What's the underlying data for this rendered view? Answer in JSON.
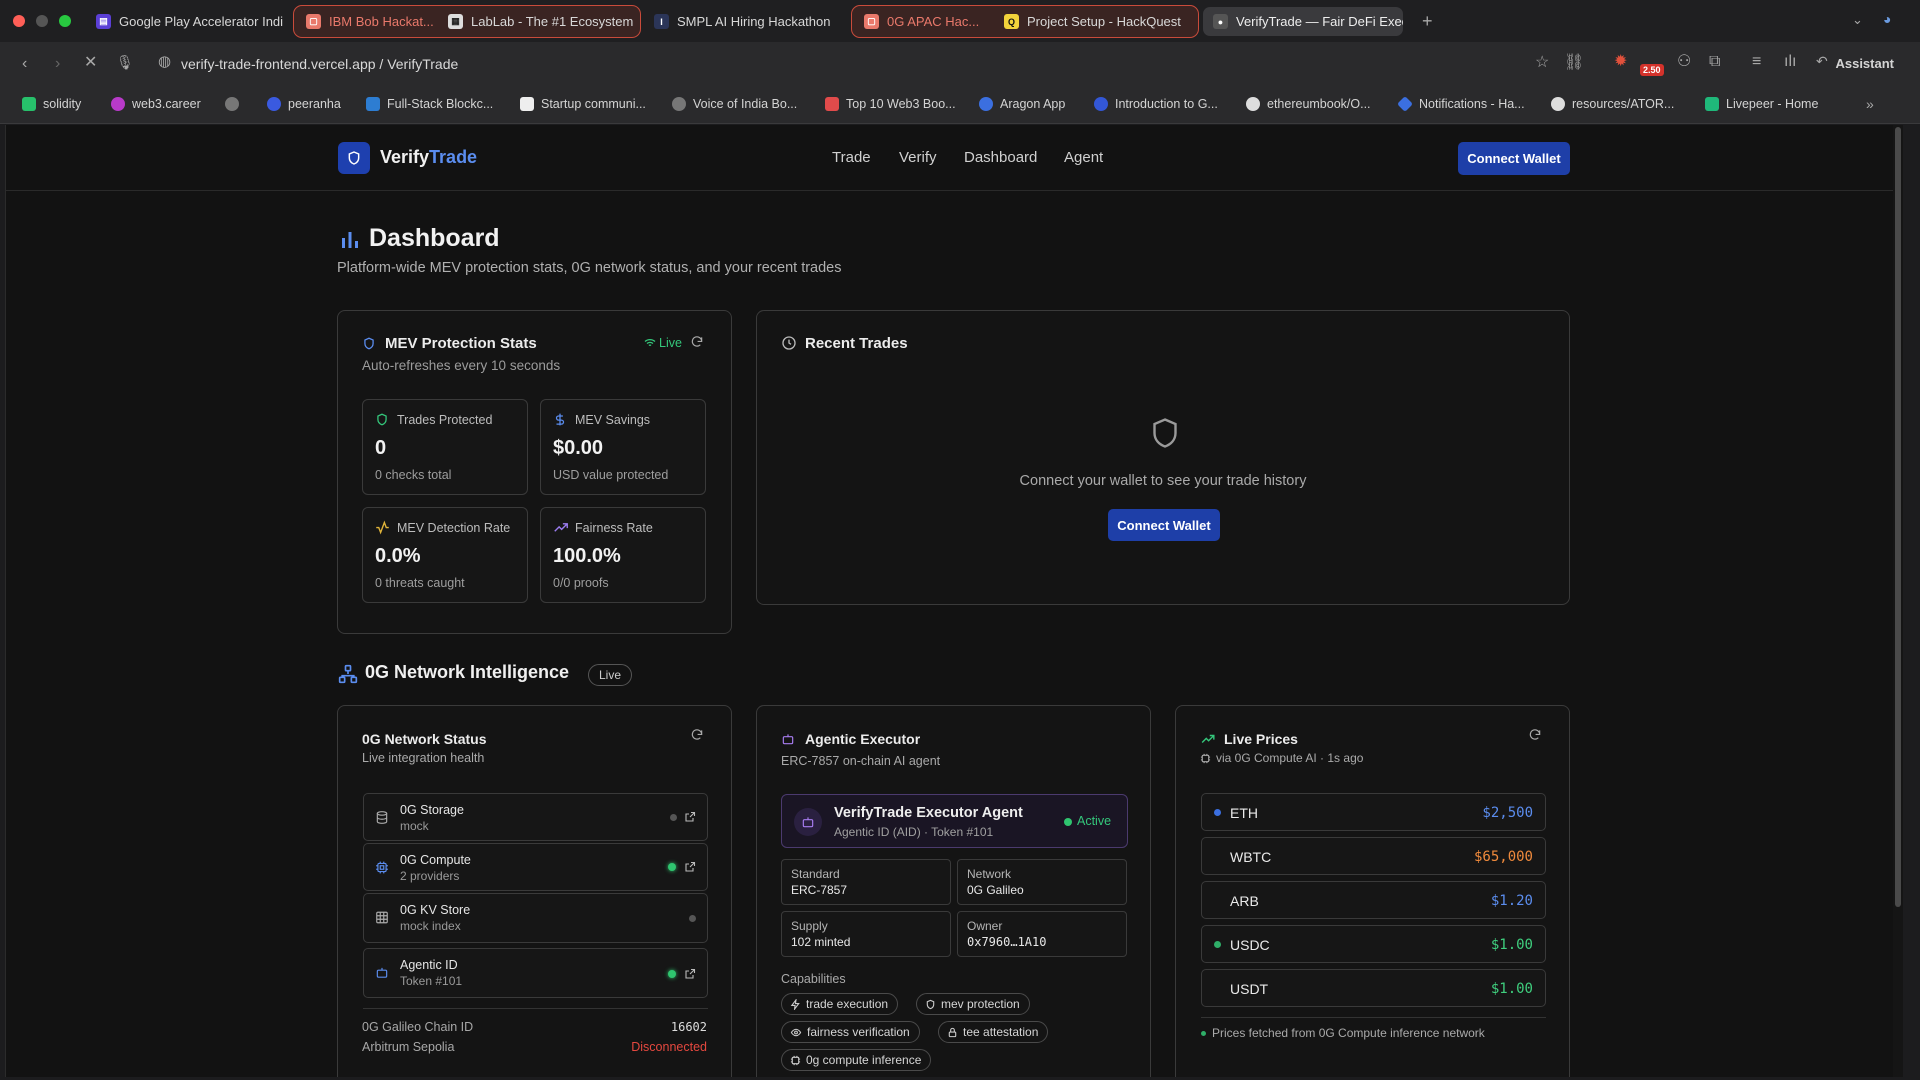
{
  "browser": {
    "tabs": [
      {
        "title": "Google Play Accelerator Indi",
        "icon": "google-play-icon"
      },
      {
        "title": "IBM Bob Hackat...",
        "icon": "folder-icon",
        "group": "red"
      },
      {
        "title": "LabLab - The #1 Ecosystem",
        "icon": "lablab-icon",
        "group": "red"
      },
      {
        "title": "SMPL AI Hiring Hackathon",
        "icon": "smpl-icon"
      },
      {
        "title": "0G APAC Hac...",
        "icon": "folder-icon",
        "group": "red"
      },
      {
        "title": "Project Setup - HackQuest",
        "icon": "hackquest-icon",
        "group": "red"
      },
      {
        "title": "VerifyTrade — Fair DeFi Exec",
        "icon": "verifytrade-icon",
        "active": true
      }
    ],
    "url": "verify-trade-frontend.vercel.app / VerifyTrade",
    "badge": "2.50",
    "assistant": "Assistant",
    "bookmarks": [
      "solidity",
      "web3.career",
      "",
      "peeranha",
      "Full-Stack Blockc...",
      "Startup communi...",
      "Voice of India Bo...",
      "Top 10 Web3 Boo...",
      "Aragon App",
      "Introduction to G...",
      "ethereumbook/O...",
      "Notifications - Ha...",
      "resources/ATOR...",
      "Livepeer - Home"
    ]
  },
  "nav": {
    "brand_prefix": "Verify",
    "brand_suffix": "Trade",
    "links": [
      "Trade",
      "Verify",
      "Dashboard",
      "Agent"
    ],
    "connect": "Connect Wallet"
  },
  "header": {
    "title": "Dashboard",
    "subtitle": "Platform-wide MEV protection stats, 0G network status, and your recent trades"
  },
  "mev": {
    "title": "MEV Protection Stats",
    "live": "Live",
    "refresh_note": "Auto-refreshes every 10 seconds",
    "stats": [
      {
        "label": "Trades Protected",
        "value": "0",
        "note": "0 checks total",
        "icon": "shield-icon",
        "color": "#34c77b"
      },
      {
        "label": "MEV Savings",
        "value": "$0.00",
        "note": "USD value protected",
        "icon": "dollar-icon",
        "color": "#5b8def"
      },
      {
        "label": "MEV Detection Rate",
        "value": "0.0%",
        "note": "0 threats caught",
        "icon": "activity-icon",
        "color": "#e0b43a"
      },
      {
        "label": "Fairness Rate",
        "value": "100.0%",
        "note": "0/0 proofs",
        "icon": "trending-up-icon",
        "color": "#9b7cf0"
      }
    ]
  },
  "recent": {
    "title": "Recent Trades",
    "empty": "Connect your wallet to see your trade history",
    "connect": "Connect Wallet"
  },
  "network": {
    "section_title": "0G Network Intelligence",
    "badge": "Live",
    "status": {
      "title": "0G Network Status",
      "subtitle": "Live integration health",
      "services": [
        {
          "name": "0G Storage",
          "desc": "mock",
          "status": "gray",
          "link": true,
          "icon": "database-icon"
        },
        {
          "name": "0G Compute",
          "desc": "2 providers",
          "status": "green",
          "link": true,
          "icon": "cpu-icon"
        },
        {
          "name": "0G KV Store",
          "desc": "mock index",
          "status": "gray",
          "link": false,
          "icon": "grid-icon"
        },
        {
          "name": "Agentic ID",
          "desc": "Token #101",
          "status": "green",
          "link": true,
          "icon": "bot-icon"
        }
      ],
      "chain_label": "0G Galileo Chain ID",
      "chain_value": "16602",
      "arb_label": "Arbitrum Sepolia",
      "arb_value": "Disconnected"
    },
    "agent": {
      "title": "Agentic Executor",
      "subtitle": "ERC-7857 on-chain AI agent",
      "name": "VerifyTrade Executor Agent",
      "meta": "Agentic ID (AID) · Token #101",
      "state": "Active",
      "cells": [
        {
          "k": "Standard",
          "v": "ERC-7857"
        },
        {
          "k": "Network",
          "v": "0G Galileo"
        },
        {
          "k": "Supply",
          "v": "102 minted"
        },
        {
          "k": "Owner",
          "v": "0x7960…1A10"
        }
      ],
      "cap_label": "Capabilities",
      "caps": [
        {
          "text": "trade execution",
          "icon": "zap-icon"
        },
        {
          "text": "mev protection",
          "icon": "shield-icon"
        },
        {
          "text": "fairness verification",
          "icon": "eye-icon"
        },
        {
          "text": "tee attestation",
          "icon": "lock-icon"
        },
        {
          "text": "0g compute inference",
          "icon": "cpu-icon"
        }
      ]
    },
    "prices": {
      "title": "Live Prices",
      "subtitle": "via 0G Compute AI · 1s ago",
      "items": [
        {
          "sym": "ETH",
          "amt": "$2,500",
          "color": "#5b8def",
          "dot": "#3b6fe0"
        },
        {
          "sym": "WBTC",
          "amt": "$65,000",
          "color": "#f08a3c",
          "dot": ""
        },
        {
          "sym": "ARB",
          "amt": "$1.20",
          "color": "#5b8def",
          "dot": ""
        },
        {
          "sym": "USDC",
          "amt": "$1.00",
          "color": "#3fcf7e",
          "dot": "#2fae68"
        },
        {
          "sym": "USDT",
          "amt": "$1.00",
          "color": "#3fcf7e",
          "dot": ""
        }
      ],
      "footer": "Prices fetched from 0G Compute inference network"
    }
  }
}
